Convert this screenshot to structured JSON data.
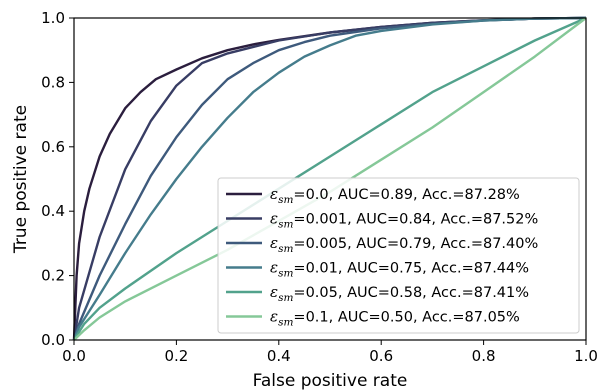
{
  "chart_data": {
    "type": "line",
    "title": "",
    "xlabel": "False positive rate",
    "ylabel": "True positive rate",
    "xlim": [
      0.0,
      1.0
    ],
    "ylim": [
      0.0,
      1.0
    ],
    "xticks": [
      "0.0",
      "0.2",
      "0.4",
      "0.6",
      "0.8",
      "1.0"
    ],
    "yticks": [
      "0.0",
      "0.2",
      "0.4",
      "0.6",
      "0.8",
      "1.0"
    ],
    "grid": false,
    "legend_position": "bottom-right",
    "series": [
      {
        "name_symbol": "ε",
        "name_sub": "sm",
        "name_rest": "=0.0, AUC=0.89, Acc.=87.28%",
        "color": "#2b1e3e",
        "x": [
          0,
          0.005,
          0.01,
          0.02,
          0.03,
          0.05,
          0.07,
          0.1,
          0.13,
          0.16,
          0.2,
          0.25,
          0.3,
          0.35,
          0.4,
          0.5,
          0.6,
          0.7,
          0.8,
          0.9,
          1.0
        ],
        "y": [
          0,
          0.2,
          0.3,
          0.4,
          0.47,
          0.57,
          0.64,
          0.72,
          0.77,
          0.81,
          0.84,
          0.875,
          0.9,
          0.918,
          0.932,
          0.955,
          0.972,
          0.985,
          0.993,
          0.998,
          1.0
        ]
      },
      {
        "name_symbol": "ε",
        "name_sub": "sm",
        "name_rest": "=0.001, AUC=0.84, Acc.=87.52%",
        "color": "#383d64",
        "x": [
          0,
          0.01,
          0.05,
          0.1,
          0.15,
          0.2,
          0.25,
          0.3,
          0.4,
          0.5,
          0.6,
          0.7,
          0.8,
          0.9,
          1.0
        ],
        "y": [
          0,
          0.1,
          0.32,
          0.53,
          0.68,
          0.79,
          0.86,
          0.89,
          0.93,
          0.955,
          0.972,
          0.985,
          0.993,
          0.998,
          1.0
        ]
      },
      {
        "name_symbol": "ε",
        "name_sub": "sm",
        "name_rest": "=0.005, AUC=0.79, Acc.=87.40%",
        "color": "#3e5a7c",
        "x": [
          0,
          0.01,
          0.05,
          0.1,
          0.15,
          0.2,
          0.25,
          0.3,
          0.35,
          0.4,
          0.45,
          0.5,
          0.6,
          0.7,
          0.8,
          0.9,
          1.0
        ],
        "y": [
          0,
          0.05,
          0.2,
          0.36,
          0.51,
          0.63,
          0.73,
          0.81,
          0.86,
          0.9,
          0.925,
          0.945,
          0.968,
          0.982,
          0.992,
          0.998,
          1.0
        ]
      },
      {
        "name_symbol": "ε",
        "name_sub": "sm",
        "name_rest": "=0.01, AUC=0.75, Acc.=87.44%",
        "color": "#457c8c",
        "x": [
          0,
          0.01,
          0.05,
          0.1,
          0.15,
          0.2,
          0.25,
          0.3,
          0.35,
          0.4,
          0.45,
          0.5,
          0.55,
          0.6,
          0.7,
          0.8,
          0.9,
          1.0
        ],
        "y": [
          0,
          0.04,
          0.14,
          0.27,
          0.39,
          0.5,
          0.6,
          0.69,
          0.77,
          0.83,
          0.88,
          0.915,
          0.945,
          0.96,
          0.98,
          0.992,
          0.998,
          1.0
        ]
      },
      {
        "name_symbol": "ε",
        "name_sub": "sm",
        "name_rest": "=0.05, AUC=0.58, Acc.=87.41%",
        "color": "#52a28c",
        "x": [
          0,
          0.02,
          0.05,
          0.1,
          0.2,
          0.3,
          0.4,
          0.5,
          0.6,
          0.7,
          0.8,
          0.9,
          1.0
        ],
        "y": [
          0,
          0.05,
          0.1,
          0.16,
          0.27,
          0.37,
          0.47,
          0.57,
          0.67,
          0.77,
          0.85,
          0.93,
          1.0
        ]
      },
      {
        "name_symbol": "ε",
        "name_sub": "sm",
        "name_rest": "=0.1, AUC=0.50, Acc.=87.05%",
        "color": "#85c898",
        "x": [
          0,
          0.02,
          0.05,
          0.1,
          0.2,
          0.3,
          0.4,
          0.5,
          0.6,
          0.7,
          0.8,
          0.9,
          1.0
        ],
        "y": [
          0,
          0.03,
          0.07,
          0.12,
          0.2,
          0.28,
          0.37,
          0.46,
          0.56,
          0.66,
          0.77,
          0.88,
          1.0
        ]
      }
    ]
  }
}
